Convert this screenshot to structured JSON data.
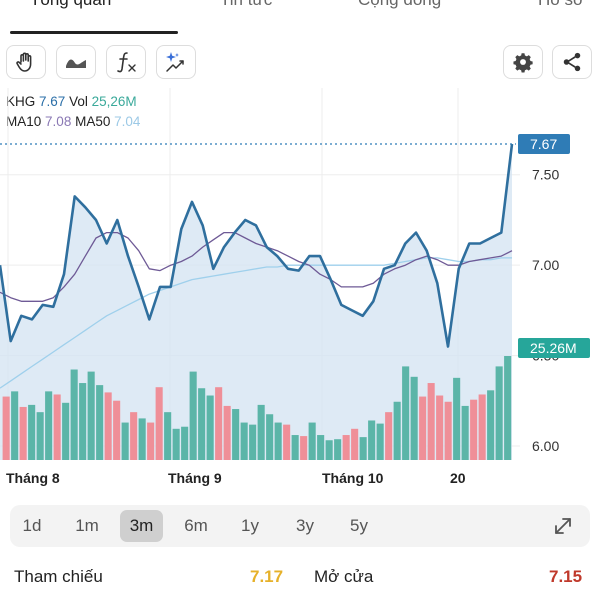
{
  "tabs": [
    {
      "label": "Tổng quan"
    },
    {
      "label": "Tin tức"
    },
    {
      "label": "Cộng đồng"
    },
    {
      "label": "Hồ sơ"
    }
  ],
  "toolbar": {
    "icons": [
      "hand-icon",
      "line-style-icon",
      "function-icon",
      "ai-sparkle-icon",
      "gear-icon",
      "share-icon"
    ]
  },
  "info": {
    "ticker": "KHG",
    "price": "7.67",
    "vol_label": "Vol",
    "vol": "25,26M",
    "ma10_label": "MA10",
    "ma10": "7.08",
    "ma50_label": "MA50",
    "ma50": "7.04"
  },
  "colors": {
    "price_line": "#2f6f9e",
    "area_fill": "#d3e3f1",
    "ma10": "#6e5a96",
    "ma50": "#9fd0ec",
    "vol_up": "#5bb5a8",
    "vol_down": "#ef8f98",
    "price_badge": "#2f7cb6",
    "vol_badge": "#26a69a",
    "ref": "#e6b12a",
    "open": "#c0392b"
  },
  "chart_data": {
    "type": "line",
    "x_labels": [
      "Tháng 8",
      "Tháng 9",
      "Tháng 10",
      "20"
    ],
    "y_ticks": [
      "7.50",
      "7.00",
      "6.50",
      "6.00"
    ],
    "ylim": [
      6.0,
      7.67
    ],
    "price_badge": "7.67",
    "volume_badge": "25.26M",
    "series": [
      {
        "values": [
          7.0,
          6.58,
          6.72,
          6.7,
          6.78,
          6.77,
          6.95,
          7.38,
          7.32,
          7.25,
          7.12,
          7.25,
          7.05,
          6.88,
          6.7,
          6.88,
          6.88,
          7.2,
          7.35,
          7.22,
          6.98,
          7.1,
          7.18,
          7.25,
          7.22,
          7.1,
          7.05,
          6.98,
          6.97,
          7.05,
          7.05,
          6.92,
          6.78,
          6.75,
          6.72,
          6.8,
          6.98,
          7.0,
          7.12,
          7.18,
          7.08,
          6.9,
          6.55,
          6.98,
          7.12,
          7.12,
          7.15,
          7.18,
          7.67
        ]
      },
      {
        "values": [
          6.85,
          6.82,
          6.8,
          6.8,
          6.8,
          6.82,
          6.88,
          6.95,
          7.05,
          7.15,
          7.18,
          7.18,
          7.15,
          7.08,
          6.98,
          6.97,
          7.0,
          7.02,
          7.05,
          7.1,
          7.14,
          7.18,
          7.18,
          7.15,
          7.12,
          7.1,
          7.08,
          7.05,
          7.02,
          7.0,
          6.95,
          6.92,
          6.88,
          6.88,
          6.88,
          6.9,
          6.95,
          6.98,
          7.0,
          7.03,
          7.05,
          7.03,
          7.0,
          7.0,
          7.02,
          7.03,
          7.04,
          7.05,
          7.08
        ]
      },
      {
        "values": [
          6.32,
          6.36,
          6.4,
          6.44,
          6.48,
          6.52,
          6.56,
          6.6,
          6.64,
          6.68,
          6.72,
          6.75,
          6.78,
          6.81,
          6.84,
          6.86,
          6.88,
          6.9,
          6.92,
          6.93,
          6.94,
          6.95,
          6.96,
          6.97,
          6.98,
          6.99,
          6.99,
          7.0,
          7.0,
          7.0,
          7.0,
          7.0,
          7.0,
          7.0,
          7.0,
          7.0,
          7.0,
          7.01,
          7.02,
          7.03,
          7.04,
          7.04,
          7.03,
          7.02,
          7.02,
          7.03,
          7.03,
          7.04,
          7.04
        ]
      }
    ],
    "volume": [
      {
        "v": 0.61,
        "up": false
      },
      {
        "v": 0.66,
        "up": true
      },
      {
        "v": 0.51,
        "up": false
      },
      {
        "v": 0.53,
        "up": true
      },
      {
        "v": 0.46,
        "up": true
      },
      {
        "v": 0.66,
        "up": true
      },
      {
        "v": 0.63,
        "up": false
      },
      {
        "v": 0.55,
        "up": true
      },
      {
        "v": 0.87,
        "up": true
      },
      {
        "v": 0.74,
        "up": true
      },
      {
        "v": 0.85,
        "up": true
      },
      {
        "v": 0.72,
        "up": true
      },
      {
        "v": 0.65,
        "up": false
      },
      {
        "v": 0.57,
        "up": false
      },
      {
        "v": 0.36,
        "up": true
      },
      {
        "v": 0.46,
        "up": false
      },
      {
        "v": 0.4,
        "up": true
      },
      {
        "v": 0.36,
        "up": false
      },
      {
        "v": 0.7,
        "up": false
      },
      {
        "v": 0.46,
        "up": true
      },
      {
        "v": 0.3,
        "up": true
      },
      {
        "v": 0.32,
        "up": true
      },
      {
        "v": 0.85,
        "up": true
      },
      {
        "v": 0.69,
        "up": true
      },
      {
        "v": 0.62,
        "up": true
      },
      {
        "v": 0.7,
        "up": false
      },
      {
        "v": 0.52,
        "up": false
      },
      {
        "v": 0.49,
        "up": true
      },
      {
        "v": 0.36,
        "up": true
      },
      {
        "v": 0.34,
        "up": true
      },
      {
        "v": 0.53,
        "up": true
      },
      {
        "v": 0.44,
        "up": true
      },
      {
        "v": 0.36,
        "up": true
      },
      {
        "v": 0.34,
        "up": false
      },
      {
        "v": 0.24,
        "up": true
      },
      {
        "v": 0.23,
        "up": false
      },
      {
        "v": 0.36,
        "up": true
      },
      {
        "v": 0.24,
        "up": true
      },
      {
        "v": 0.19,
        "up": true
      },
      {
        "v": 0.2,
        "up": true
      },
      {
        "v": 0.24,
        "up": false
      },
      {
        "v": 0.3,
        "up": false
      },
      {
        "v": 0.22,
        "up": true
      },
      {
        "v": 0.38,
        "up": true
      },
      {
        "v": 0.35,
        "up": true
      },
      {
        "v": 0.46,
        "up": false
      },
      {
        "v": 0.56,
        "up": true
      },
      {
        "v": 0.9,
        "up": true
      },
      {
        "v": 0.8,
        "up": true
      },
      {
        "v": 0.61,
        "up": false
      },
      {
        "v": 0.74,
        "up": false
      },
      {
        "v": 0.62,
        "up": false
      },
      {
        "v": 0.56,
        "up": false
      },
      {
        "v": 0.79,
        "up": true
      },
      {
        "v": 0.52,
        "up": true
      },
      {
        "v": 0.58,
        "up": false
      },
      {
        "v": 0.63,
        "up": false
      },
      {
        "v": 0.67,
        "up": true
      },
      {
        "v": 0.9,
        "up": true
      },
      {
        "v": 1.0,
        "up": true
      }
    ]
  },
  "ranges": [
    "1d",
    "1m",
    "3m",
    "6m",
    "1y",
    "3y",
    "5y"
  ],
  "active_range": "3m",
  "stats": {
    "ref_label": "Tham chiếu",
    "ref_value": "7.17",
    "open_label": "Mở cửa",
    "open_value": "7.15"
  }
}
